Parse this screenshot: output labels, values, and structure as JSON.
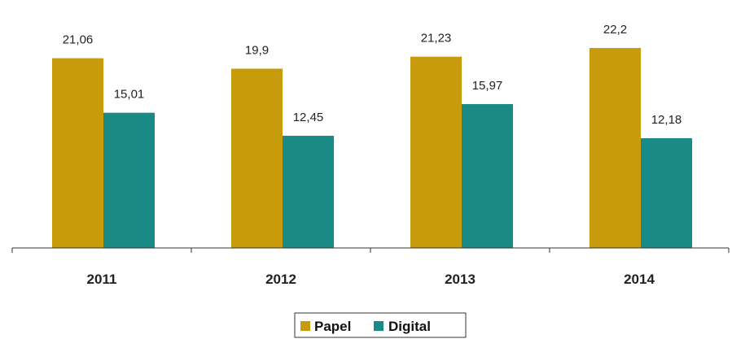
{
  "chart_data": {
    "type": "bar",
    "categories": [
      "2011",
      "2012",
      "2013",
      "2014"
    ],
    "series": [
      {
        "name": "Papel",
        "values": [
          21.06,
          19.9,
          21.23,
          22.2
        ],
        "labels": [
          "21,06",
          "19,9",
          "21,23",
          "22,2"
        ],
        "color": "#C89B0C"
      },
      {
        "name": "Digital",
        "values": [
          15.01,
          12.45,
          15.97,
          12.18
        ],
        "labels": [
          "15,01",
          "12,45",
          "15,97",
          "12,18"
        ],
        "color": "#1A8A86"
      }
    ],
    "ylim": [
      0,
      22.2
    ],
    "grid": false,
    "legend_position": "bottom"
  }
}
